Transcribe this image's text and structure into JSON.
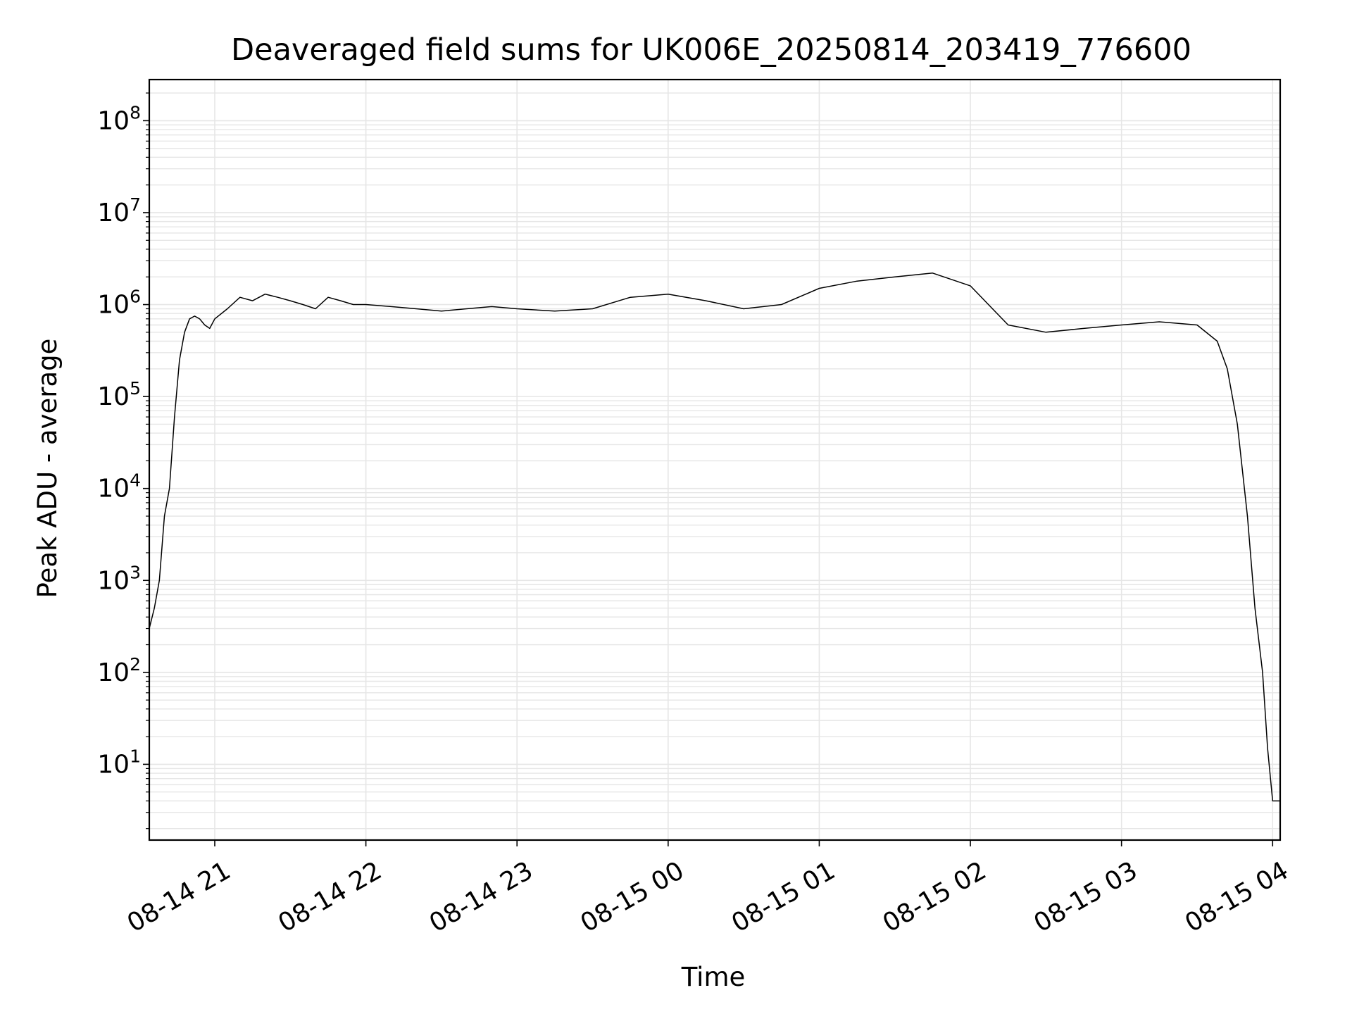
{
  "chart_data": {
    "type": "line",
    "title": "Deaveraged field sums for UK006E_20250814_203419_776600",
    "xlabel": "Time",
    "ylabel": "Peak ADU - average",
    "y_scale": "log",
    "ylim": [
      1.5,
      280000000.0
    ],
    "xlim": [
      "2025-08-14 20:34",
      "2025-08-15 04:03"
    ],
    "grid": true,
    "grid_color": "#e6e6e6",
    "line_color": "#000000",
    "x_ticks": [
      {
        "value": "2025-08-14 21:00",
        "label": "08-14 21"
      },
      {
        "value": "2025-08-14 22:00",
        "label": "08-14 22"
      },
      {
        "value": "2025-08-14 23:00",
        "label": "08-14 23"
      },
      {
        "value": "2025-08-15 00:00",
        "label": "08-15 00"
      },
      {
        "value": "2025-08-15 01:00",
        "label": "08-15 01"
      },
      {
        "value": "2025-08-15 02:00",
        "label": "08-15 02"
      },
      {
        "value": "2025-08-15 03:00",
        "label": "08-15 03"
      },
      {
        "value": "2025-08-15 04:00",
        "label": "08-15 04"
      }
    ],
    "y_ticks": [
      {
        "value": 10,
        "base": "10",
        "exp": "1"
      },
      {
        "value": 100,
        "base": "10",
        "exp": "2"
      },
      {
        "value": 1000,
        "base": "10",
        "exp": "3"
      },
      {
        "value": 10000,
        "base": "10",
        "exp": "4"
      },
      {
        "value": 100000,
        "base": "10",
        "exp": "5"
      },
      {
        "value": 1000000,
        "base": "10",
        "exp": "6"
      },
      {
        "value": 10000000,
        "base": "10",
        "exp": "7"
      },
      {
        "value": 100000000,
        "base": "10",
        "exp": "8"
      }
    ],
    "series": [
      {
        "x": [
          "2025-08-14 20:34",
          "2025-08-14 20:36",
          "2025-08-14 20:38",
          "2025-08-14 20:40",
          "2025-08-14 20:42",
          "2025-08-14 20:44",
          "2025-08-14 20:46",
          "2025-08-14 20:48",
          "2025-08-14 20:50",
          "2025-08-14 20:52",
          "2025-08-14 20:54",
          "2025-08-14 20:56",
          "2025-08-14 20:58",
          "2025-08-14 21:00",
          "2025-08-14 21:05",
          "2025-08-14 21:10",
          "2025-08-14 21:15",
          "2025-08-14 21:20",
          "2025-08-14 21:25",
          "2025-08-14 21:30",
          "2025-08-14 21:35",
          "2025-08-14 21:40",
          "2025-08-14 21:45",
          "2025-08-14 21:50",
          "2025-08-14 21:55",
          "2025-08-14 22:00",
          "2025-08-14 22:10",
          "2025-08-14 22:20",
          "2025-08-14 22:30",
          "2025-08-14 22:40",
          "2025-08-14 22:50",
          "2025-08-14 23:00",
          "2025-08-14 23:15",
          "2025-08-14 23:30",
          "2025-08-14 23:45",
          "2025-08-15 00:00",
          "2025-08-15 00:15",
          "2025-08-15 00:30",
          "2025-08-15 00:45",
          "2025-08-15 01:00",
          "2025-08-15 01:15",
          "2025-08-15 01:30",
          "2025-08-15 01:45",
          "2025-08-15 02:00",
          "2025-08-15 02:15",
          "2025-08-15 02:30",
          "2025-08-15 02:45",
          "2025-08-15 03:00",
          "2025-08-15 03:15",
          "2025-08-15 03:30",
          "2025-08-15 03:38",
          "2025-08-15 03:42",
          "2025-08-15 03:46",
          "2025-08-15 03:50",
          "2025-08-15 03:53",
          "2025-08-15 03:56",
          "2025-08-15 03:58",
          "2025-08-15 04:00",
          "2025-08-15 04:03"
        ],
        "y": [
          300,
          500,
          1000,
          5000,
          10000,
          60000,
          250000,
          500000,
          700000,
          750000,
          700000,
          600000,
          550000,
          700000,
          900000,
          1200000,
          1100000,
          1300000,
          1200000,
          1100000,
          1000000,
          900000,
          1200000,
          1100000,
          1000000,
          1000000,
          950000,
          900000,
          850000,
          900000,
          950000,
          900000,
          850000,
          900000,
          1200000,
          1300000,
          1100000,
          900000,
          1000000,
          1500000,
          1800000,
          2000000,
          2200000,
          1600000,
          600000,
          500000,
          550000,
          600000,
          650000,
          600000,
          400000,
          200000,
          50000,
          5000,
          500,
          100,
          15,
          4,
          4
        ]
      }
    ]
  }
}
